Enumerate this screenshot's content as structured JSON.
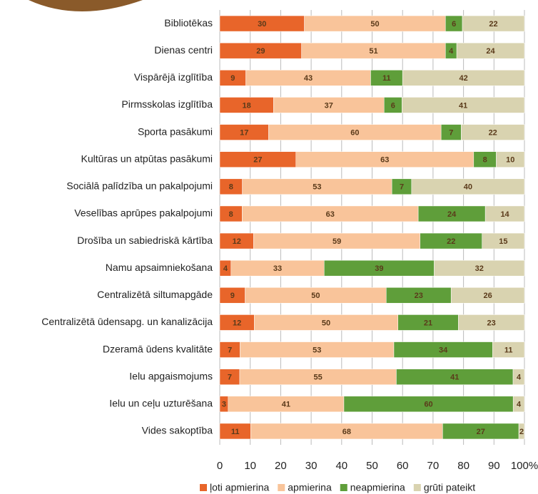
{
  "chart_data": {
    "type": "stacked100bar",
    "categories": [
      "Bibliotēkas",
      "Dienas centri",
      "Vispārējā izglītība",
      "Pirmsskolas izglītība",
      "Sporta pasākumi",
      "Kultūras un atpūtas pasākumi",
      "Sociālā palīdzība un pakalpojumi",
      "Veselības aprūpes pakalpojumi",
      "Drošība un sabiedriskā kārtība",
      "Namu apsaimniekošana",
      "Centralizētā siltumapgāde",
      "Centralizētā ūdensapg. un kanalizācija",
      "Dzeramā ūdens kvalitāte",
      "Ielu apgaismojums",
      "Ielu un ceļu uzturēšana",
      "Vides sakoptība"
    ],
    "series": [
      {
        "name": "ļoti apmierina",
        "color": "#e8652a",
        "values": [
          30,
          29,
          9,
          18,
          17,
          27,
          8,
          8,
          12,
          4,
          9,
          12,
          7,
          7,
          3,
          11
        ]
      },
      {
        "name": "apmierina",
        "color": "#f9c49a",
        "values": [
          50,
          51,
          43,
          37,
          60,
          63,
          53,
          63,
          59,
          33,
          50,
          50,
          53,
          55,
          41,
          68
        ]
      },
      {
        "name": "neapmierina",
        "color": "#5f9e3a",
        "values": [
          6,
          4,
          11,
          6,
          7,
          8,
          7,
          24,
          22,
          39,
          23,
          21,
          34,
          41,
          60,
          27
        ]
      },
      {
        "name": "grūti pateikt",
        "color": "#d9d3b0",
        "values": [
          22,
          24,
          42,
          41,
          22,
          10,
          40,
          14,
          15,
          32,
          26,
          23,
          11,
          4,
          4,
          2
        ]
      }
    ],
    "xlim": [
      0,
      100
    ],
    "xticks": [
      0,
      10,
      20,
      30,
      40,
      50,
      60,
      70,
      80,
      90,
      {
        "value": 100,
        "label": "100%"
      }
    ],
    "grid": true,
    "legend": "bottom"
  }
}
